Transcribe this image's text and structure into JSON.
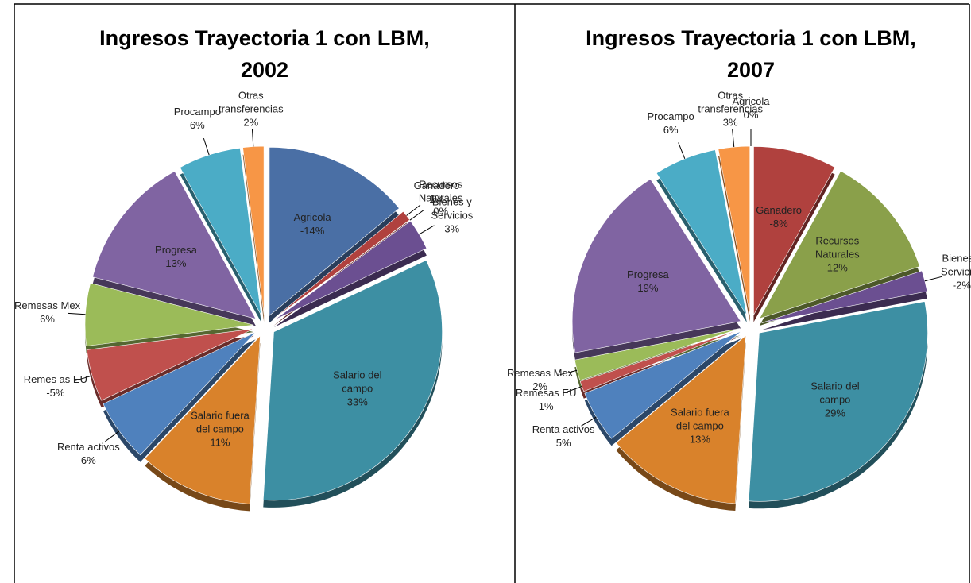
{
  "chart_data": [
    {
      "type": "pie",
      "title": "Ingresos Trayectoria 1 con LBM, 2002",
      "categories": [
        "Agricola",
        "Ganadero",
        "Recursos Naturales",
        "Bienes y Servicios",
        "Salario del campo",
        "Salario fuera del campo",
        "Renta activos",
        "Remes as EU",
        "Remesas Mex",
        "Progresa",
        "Procampo",
        "Otras transferencias"
      ],
      "values": [
        -14,
        1,
        0,
        3,
        33,
        11,
        6,
        -5,
        6,
        13,
        6,
        2
      ],
      "value_labels": [
        "-14%",
        "1%",
        "0%",
        "3%",
        "33%",
        "11%",
        "6%",
        "-5%",
        "6%",
        "13%",
        "6%",
        "2%"
      ],
      "colors": [
        "#4a6fa5",
        "#b0413e",
        "#8aa04a",
        "#6b4f91",
        "#3d8fa3",
        "#d9822b",
        "#4f81bd",
        "#c0504d",
        "#9bbb59",
        "#8064a2",
        "#4bacc6",
        "#f79646"
      ]
    },
    {
      "type": "pie",
      "title": "Ingresos Trayectoria 1 con LBM, 2007",
      "categories": [
        "Agricola",
        "Ganadero",
        "Recursos Naturales",
        "Bienes y Servicios",
        "Salario del campo",
        "Salario fuera del campo",
        "Renta activos",
        "Remesas EU",
        "Remesas Mex",
        "Progresa",
        "Procampo",
        "Otras transferencias"
      ],
      "values": [
        0,
        -8,
        12,
        -2,
        29,
        13,
        5,
        1,
        2,
        19,
        6,
        3
      ],
      "value_labels": [
        "0%",
        "-8%",
        "12%",
        "-2%",
        "29%",
        "13%",
        "5%",
        "1%",
        "2%",
        "19%",
        "6%",
        "3%"
      ],
      "colors": [
        "#4a6fa5",
        "#b0413e",
        "#8aa04a",
        "#6b4f91",
        "#3d8fa3",
        "#d9822b",
        "#4f81bd",
        "#c0504d",
        "#9bbb59",
        "#8064a2",
        "#4bacc6",
        "#f79646"
      ]
    }
  ]
}
